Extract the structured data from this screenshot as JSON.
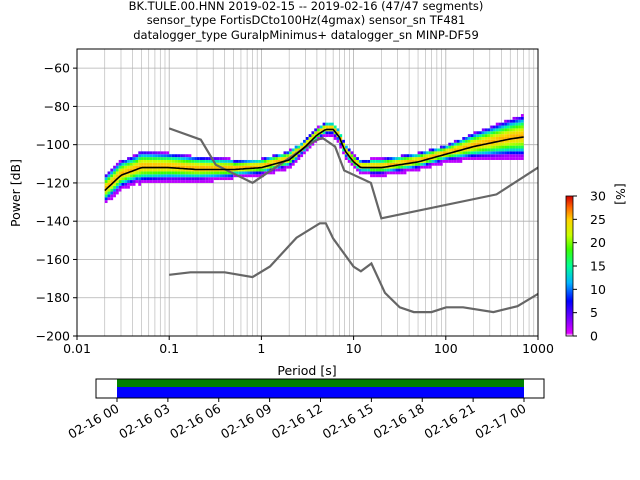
{
  "title_lines": [
    "BK.TULE.00.HNN   2019-02-15 -- 2019-02-16  (47/47 segments)",
    "sensor_type FortisDCto100Hz(4gmax) sensor_sn TF481",
    "datalogger_type GuralpMinimus+ datalogger_sn MINP-DF59"
  ],
  "chart_data": [
    {
      "type": "heatmap",
      "name": "ppsd",
      "xlabel": "Period [s]",
      "ylabel": "Power [dB]",
      "xscale": "log",
      "xlim": [
        0.01,
        1000
      ],
      "ylim": [
        -200,
        -50
      ],
      "xticks": [
        0.01,
        0.1,
        1,
        10,
        100,
        1000
      ],
      "xtick_labels": [
        "0.01",
        "0.1",
        "1",
        "10",
        "100",
        "1000"
      ],
      "yticks": [
        -200,
        -180,
        -160,
        -140,
        -120,
        -100,
        -80,
        -60
      ],
      "ytick_labels": [
        "−200",
        "−180",
        "−160",
        "−140",
        "−120",
        "−100",
        "−80",
        "−60"
      ],
      "grid": true,
      "colorbar": {
        "label": "[%]",
        "range": [
          0,
          30
        ],
        "ticks": [
          0,
          5,
          10,
          15,
          20,
          25,
          30
        ],
        "tick_labels": [
          "0",
          "5",
          "10",
          "15",
          "20",
          "25",
          "30"
        ],
        "colormap": "pqlx"
      },
      "mode_curve": [
        [
          0.02,
          -124
        ],
        [
          0.03,
          -116
        ],
        [
          0.05,
          -112
        ],
        [
          0.1,
          -112
        ],
        [
          0.2,
          -113
        ],
        [
          0.5,
          -113
        ],
        [
          1,
          -112
        ],
        [
          2,
          -108
        ],
        [
          3,
          -101
        ],
        [
          4,
          -95
        ],
        [
          5,
          -92
        ],
        [
          6,
          -92
        ],
        [
          7,
          -96
        ],
        [
          8,
          -103
        ],
        [
          10,
          -109
        ],
        [
          12,
          -112
        ],
        [
          20,
          -112
        ],
        [
          50,
          -109
        ],
        [
          100,
          -105
        ],
        [
          200,
          -101
        ],
        [
          500,
          -97
        ],
        [
          700,
          -96
        ]
      ],
      "noise_models": [
        {
          "name": "NHNM",
          "points": [
            [
              0.1,
              -91.5
            ],
            [
              0.22,
              -97.4
            ],
            [
              0.32,
              -110.5
            ],
            [
              0.8,
              -120
            ],
            [
              3.8,
              -98
            ],
            [
              4.6,
              -96.5
            ],
            [
              6.3,
              -101
            ],
            [
              7.9,
              -113.5
            ],
            [
              15.4,
              -120
            ],
            [
              20,
              -138.5
            ],
            [
              354.8,
              -126
            ],
            [
              1000,
              -112
            ]
          ]
        },
        {
          "name": "NLNM",
          "points": [
            [
              0.1,
              -168
            ],
            [
              0.17,
              -166.7
            ],
            [
              0.4,
              -166.7
            ],
            [
              0.8,
              -169.2
            ],
            [
              1.24,
              -163.7
            ],
            [
              2.4,
              -148.6
            ],
            [
              4.3,
              -141.1
            ],
            [
              5,
              -141.1
            ],
            [
              6,
              -149
            ],
            [
              10,
              -163.8
            ],
            [
              12,
              -166.2
            ],
            [
              15.6,
              -162.1
            ],
            [
              21.9,
              -177.5
            ],
            [
              31.6,
              -185
            ],
            [
              45,
              -187.5
            ],
            [
              70,
              -187.5
            ],
            [
              101,
              -185
            ],
            [
              154,
              -185
            ],
            [
              328,
              -187.5
            ],
            [
              600,
              -184.4
            ],
            [
              1000,
              -178
            ]
          ]
        }
      ],
      "period_range": [
        0.02,
        700
      ]
    },
    {
      "type": "timeline",
      "name": "data-coverage",
      "tick_labels": [
        "02-16 00",
        "02-16 03",
        "02-16 06",
        "02-16 09",
        "02-16 12",
        "02-16 15",
        "02-16 18",
        "02-16 21",
        "02-17 00"
      ],
      "coverage_start_hour": 0,
      "coverage_end_hour": 24,
      "colors": {
        "upper": "#008000",
        "lower": "#0000ff"
      }
    }
  ]
}
